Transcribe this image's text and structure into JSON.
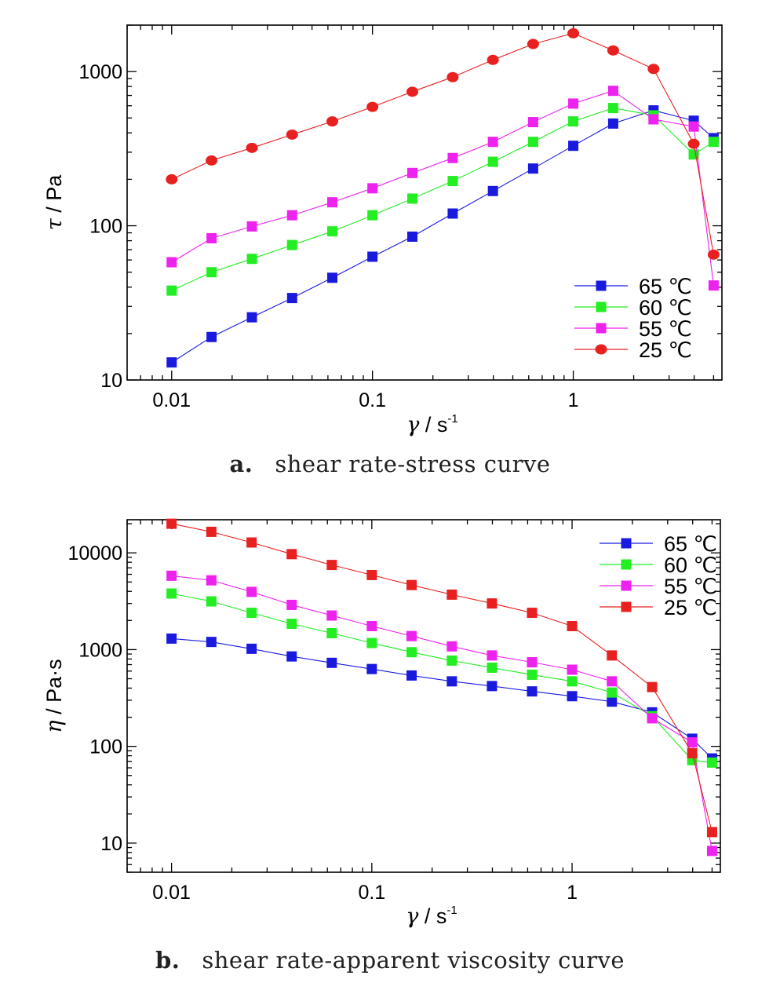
{
  "chart_data": [
    {
      "type": "line",
      "panel": "a",
      "caption_letter": "a.",
      "caption_text": "shear rate-stress curve",
      "xlabel_sym": "γ",
      "xlabel_unit": " / s",
      "xlabel_sup": "-1",
      "ylabel_sym": "τ",
      "ylabel_unit": " / Pa",
      "x_scale": "log",
      "y_scale": "log",
      "xlim": [
        0.006,
        5.5
      ],
      "ylim": [
        10,
        2000
      ],
      "x_ticks": [
        0.01,
        0.1,
        1
      ],
      "x_tick_labels": [
        "0.01",
        "0.1",
        "1"
      ],
      "y_ticks": [
        10,
        100,
        1000
      ],
      "y_tick_labels": [
        "10",
        "100",
        "1000"
      ],
      "legend_position": "bottom-right",
      "x": [
        0.01,
        0.0158,
        0.0251,
        0.0398,
        0.0631,
        0.1,
        0.158,
        0.251,
        0.398,
        0.631,
        1,
        1.58,
        2.51,
        3.98,
        5.0
      ],
      "series": [
        {
          "name": "65 ℃",
          "color": "#1a1adf",
          "marker": "square",
          "values": [
            13,
            19,
            25.5,
            34,
            46,
            63,
            85,
            120,
            168,
            235,
            330,
            460,
            560,
            480,
            370
          ]
        },
        {
          "name": "60 ℃",
          "color": "#22ee22",
          "marker": "square",
          "values": [
            38,
            50,
            61,
            75,
            92,
            117,
            150,
            195,
            260,
            350,
            475,
            580,
            520,
            290,
            350
          ]
        },
        {
          "name": "55 ℃",
          "color": "#ee22ee",
          "marker": "square",
          "values": [
            58,
            83,
            99,
            117,
            142,
            175,
            220,
            275,
            350,
            470,
            620,
            750,
            490,
            440,
            41
          ]
        },
        {
          "name": "25 ℃",
          "color": "#e82020",
          "marker": "circle",
          "values": [
            200,
            265,
            320,
            390,
            475,
            590,
            740,
            920,
            1190,
            1510,
            1770,
            1370,
            1040,
            340,
            65
          ]
        }
      ]
    },
    {
      "type": "line",
      "panel": "b",
      "caption_letter": "b.",
      "caption_text": "shear rate-apparent viscosity curve",
      "xlabel_sym": "γ",
      "xlabel_unit": " / s",
      "xlabel_sup": "-1",
      "ylabel_sym": "η",
      "ylabel_unit": " / Pa·s",
      "x_scale": "log",
      "y_scale": "log",
      "xlim": [
        0.006,
        5.5
      ],
      "ylim": [
        5,
        22000
      ],
      "x_ticks": [
        0.01,
        0.1,
        1
      ],
      "x_tick_labels": [
        "0.01",
        "0.1",
        "1"
      ],
      "y_ticks": [
        10,
        100,
        1000,
        10000
      ],
      "y_tick_labels": [
        "10",
        "100",
        "1000",
        "10000"
      ],
      "legend_position": "top-right",
      "x": [
        0.01,
        0.0158,
        0.0251,
        0.0398,
        0.0631,
        0.1,
        0.158,
        0.251,
        0.398,
        0.631,
        1,
        1.58,
        2.51,
        3.98,
        5.0
      ],
      "series": [
        {
          "name": "65 ℃",
          "color": "#1a1adf",
          "marker": "square",
          "values": [
            1300,
            1200,
            1020,
            850,
            730,
            630,
            540,
            470,
            420,
            370,
            330,
            290,
            225,
            120,
            75
          ]
        },
        {
          "name": "60 ℃",
          "color": "#22ee22",
          "marker": "square",
          "values": [
            3800,
            3150,
            2400,
            1850,
            1480,
            1170,
            940,
            770,
            650,
            550,
            470,
            360,
            205,
            72,
            68
          ]
        },
        {
          "name": "55 ℃",
          "color": "#ee22ee",
          "marker": "square",
          "values": [
            5800,
            5200,
            3950,
            2900,
            2250,
            1750,
            1380,
            1080,
            870,
            740,
            620,
            470,
            195,
            110,
            8.3
          ]
        },
        {
          "name": "25 ℃",
          "color": "#e82020",
          "marker": "square",
          "values": [
            20000,
            16500,
            12800,
            9700,
            7500,
            5900,
            4650,
            3700,
            3000,
            2400,
            1750,
            870,
            410,
            85,
            13
          ]
        }
      ]
    }
  ]
}
